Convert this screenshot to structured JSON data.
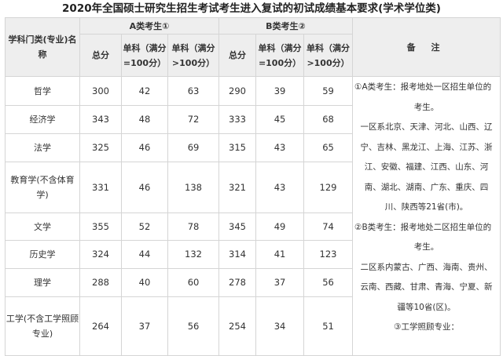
{
  "title": "2020年全国硕士研究生招生考试考生进入复试的初试成绩基本要求(学术学位类)",
  "header": {
    "subject_col": "学科门类(专业)名称",
    "group_a": "A类考生①",
    "group_b": "B类考生②",
    "notes_col": "备 注",
    "total": "总分",
    "single_100": "单科（满分=100分）",
    "single_over_100": "单科（满分>100分）"
  },
  "rows": [
    {
      "subject": "哲学",
      "a_total": "300",
      "a_s100": "42",
      "a_sover": "63",
      "b_total": "290",
      "b_s100": "39",
      "b_sover": "59"
    },
    {
      "subject": "经济学",
      "a_total": "343",
      "a_s100": "48",
      "a_sover": "72",
      "b_total": "333",
      "b_s100": "45",
      "b_sover": "68"
    },
    {
      "subject": "法学",
      "a_total": "325",
      "a_s100": "46",
      "a_sover": "69",
      "b_total": "315",
      "b_s100": "43",
      "b_sover": "65"
    },
    {
      "subject": "教育学(不含体育学)",
      "a_total": "331",
      "a_s100": "46",
      "a_sover": "138",
      "b_total": "321",
      "b_s100": "43",
      "b_sover": "129"
    },
    {
      "subject": "文学",
      "a_total": "355",
      "a_s100": "52",
      "a_sover": "78",
      "b_total": "345",
      "b_s100": "49",
      "b_sover": "74"
    },
    {
      "subject": "历史学",
      "a_total": "324",
      "a_s100": "44",
      "a_sover": "132",
      "b_total": "314",
      "b_s100": "41",
      "b_sover": "123"
    },
    {
      "subject": "理学",
      "a_total": "288",
      "a_s100": "40",
      "a_sover": "60",
      "b_total": "278",
      "b_s100": "37",
      "b_sover": "56"
    },
    {
      "subject": "工学(不含工学照顾专业)",
      "a_total": "264",
      "a_s100": "37",
      "a_sover": "56",
      "b_total": "254",
      "b_s100": "34",
      "b_sover": "51"
    }
  ],
  "notes": [
    "①A类考生：报考地处一区招生单位的",
    "考生。",
    "一区系北京、天津、河北、山西、辽",
    "宁、吉林、黑龙江、上海、江苏、浙",
    "江、安徽、福建、江西、山东、河",
    "南、湖北、湖南、广东、重庆、四",
    "川、陕西等21省(市)。",
    "②B类考生：报考地处二区招生单位的",
    "考生。",
    "二区系内蒙古、广西、海南、贵州、",
    "云南、西藏、甘肃、青海、宁夏、新",
    "疆等10省(区)。",
    "③工学照顾专业："
  ]
}
